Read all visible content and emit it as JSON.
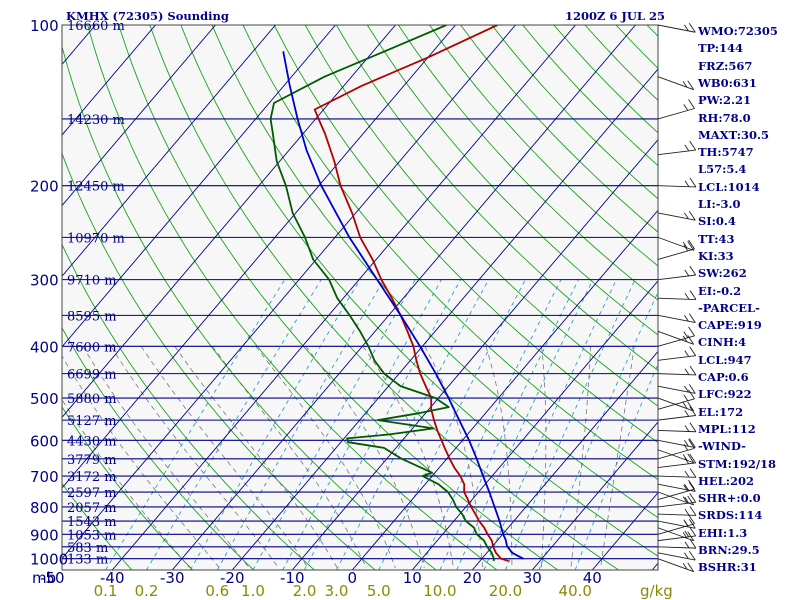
{
  "header": {
    "station": "KMHX (72305) Sounding",
    "time": "1200Z  6 JUL 25"
  },
  "colors": {
    "background": "#ffffff",
    "plot_background": "#f7f7f7",
    "isobars": "#00008b",
    "isotherms": "#00008b",
    "dry_adiabats": "#1aa31a",
    "moist_adiabats": "#777777",
    "mixing_ratio": "#2e9cc9",
    "temperature": "#b00000",
    "dewpoint": "#005a00",
    "parcel": "#0000cc",
    "mixing_ratio_labels": "#8a8a00",
    "text": "#00008b"
  },
  "indices": [
    "WMO:72305",
    "TP:144",
    "FRZ:567",
    "WB0:631",
    "PW:2.21",
    "RH:78.0",
    "MAXT:30.5",
    "TH:5747",
    "L57:5.4",
    "LCL:1014",
    "LI:-3.0",
    "SI:0.4",
    "TT:43",
    "KI:33",
    "SW:262",
    "EI:-0.2",
    "-PARCEL-",
    "CAPE:919",
    "CINH:4",
    "LCL:947",
    "CAP:0.6",
    "LFC:922",
    "EL:172",
    "MPL:112",
    "-WIND-",
    "STM:192/18",
    "HEL:202",
    "SHR+:0.0",
    "SRDS:114",
    "EHI:1.3",
    "BRN:29.5",
    "BSHR:31"
  ],
  "chart_data": {
    "type": "line",
    "title": "KMHX (72305) Sounding",
    "subtitle": "1200Z  6 JUL 25",
    "y_axis": "pressure (mb), logarithmic",
    "ylim": [
      1050,
      100
    ],
    "xlim": [
      -50,
      50
    ],
    "pressure_labels": [
      100,
      200,
      300,
      400,
      500,
      600,
      700,
      800,
      900,
      1000
    ],
    "height_labels": [
      {
        "p": 100,
        "label": "16660 m"
      },
      {
        "p": 150,
        "label": "14230 m"
      },
      {
        "p": 200,
        "label": "12450 m"
      },
      {
        "p": 250,
        "label": "10970 m"
      },
      {
        "p": 300,
        "label": "9710 m"
      },
      {
        "p": 350,
        "label": "8595 m"
      },
      {
        "p": 400,
        "label": "7600 m"
      },
      {
        "p": 450,
        "label": "6699 m"
      },
      {
        "p": 500,
        "label": "5880 m"
      },
      {
        "p": 550,
        "label": "5127 m"
      },
      {
        "p": 600,
        "label": "4430 m"
      },
      {
        "p": 650,
        "label": "3779 m"
      },
      {
        "p": 700,
        "label": "3172 m"
      },
      {
        "p": 750,
        "label": "2597 m"
      },
      {
        "p": 800,
        "label": "2057 m"
      },
      {
        "p": 850,
        "label": "1543 m"
      },
      {
        "p": 900,
        "label": "1053 m"
      },
      {
        "p": 950,
        "label": "583 m"
      },
      {
        "p": 1000,
        "label": "133 m"
      }
    ],
    "x_unit_label": "mb",
    "temperature_ticks": [
      "-50",
      "-40",
      "-30",
      "-20",
      "-10",
      "0",
      "10",
      "20",
      "30",
      "40"
    ],
    "temperature_tick_values": [
      -50,
      -40,
      -30,
      -20,
      -10,
      0,
      10,
      20,
      30,
      40
    ],
    "mixing_ratio_labels": [
      "0.1",
      "0.2",
      "0.6",
      "1.0",
      "2.0",
      "3.0",
      "5.0",
      "10.0",
      "20.0",
      "40.0"
    ],
    "mixing_ratio_positions": [
      0.1,
      0.2,
      0.6,
      1.0,
      2.0,
      3.0,
      5.0,
      10.0,
      20.0,
      40.0
    ],
    "mixing_ratio_unit": "g/kg",
    "series": [
      {
        "key": "temperature",
        "points": [
          [
            1010,
            24.8
          ],
          [
            1000,
            23.2
          ],
          [
            975,
            21.5
          ],
          [
            950,
            20.2
          ],
          [
            925,
            19.1
          ],
          [
            900,
            17.5
          ],
          [
            875,
            16.0
          ],
          [
            850,
            14.2
          ],
          [
            825,
            12.6
          ],
          [
            800,
            10.9
          ],
          [
            775,
            9.3
          ],
          [
            750,
            7.6
          ],
          [
            725,
            6.5
          ],
          [
            700,
            4.7
          ],
          [
            675,
            2.5
          ],
          [
            650,
            0.5
          ],
          [
            625,
            -1.5
          ],
          [
            600,
            -3.5
          ],
          [
            575,
            -5.6
          ],
          [
            550,
            -7.6
          ],
          [
            525,
            -9.6
          ],
          [
            500,
            -11.2
          ],
          [
            475,
            -13.8
          ],
          [
            450,
            -16.5
          ],
          [
            425,
            -19.0
          ],
          [
            400,
            -21.5
          ],
          [
            375,
            -24.6
          ],
          [
            350,
            -28.0
          ],
          [
            325,
            -31.9
          ],
          [
            300,
            -36.3
          ],
          [
            275,
            -40.6
          ],
          [
            250,
            -45.8
          ],
          [
            225,
            -50.6
          ],
          [
            200,
            -56.4
          ],
          [
            180,
            -60.9
          ],
          [
            160,
            -66.3
          ],
          [
            150,
            -69.5
          ],
          [
            144,
            -71.5
          ],
          [
            130,
            -67.0
          ],
          [
            115,
            -60.0
          ],
          [
            100,
            -53.0
          ]
        ]
      },
      {
        "key": "dewpoint",
        "points": [
          [
            1010,
            22.3
          ],
          [
            1000,
            22.0
          ],
          [
            975,
            20.8
          ],
          [
            950,
            19.2
          ],
          [
            925,
            17.8
          ],
          [
            900,
            15.7
          ],
          [
            875,
            14.3
          ],
          [
            850,
            12.0
          ],
          [
            825,
            10.4
          ],
          [
            800,
            8.4
          ],
          [
            775,
            6.8
          ],
          [
            750,
            4.9
          ],
          [
            725,
            2.2
          ],
          [
            700,
            -1.6
          ],
          [
            690,
            -0.5
          ],
          [
            650,
            -7.5
          ],
          [
            620,
            -12.0
          ],
          [
            605,
            -18.8
          ],
          [
            595,
            -19.5
          ],
          [
            585,
            -13.0
          ],
          [
            570,
            -6.5
          ],
          [
            550,
            -17.0
          ],
          [
            535,
            -11.5
          ],
          [
            520,
            -7.0
          ],
          [
            500,
            -10.5
          ],
          [
            475,
            -18.0
          ],
          [
            450,
            -22.5
          ],
          [
            425,
            -26.0
          ],
          [
            400,
            -29.0
          ],
          [
            375,
            -32.5
          ],
          [
            350,
            -36.5
          ],
          [
            325,
            -41.0
          ],
          [
            300,
            -45.0
          ],
          [
            275,
            -50.5
          ],
          [
            250,
            -55.0
          ],
          [
            225,
            -60.5
          ],
          [
            200,
            -65.5
          ],
          [
            180,
            -70.5
          ],
          [
            160,
            -75.0
          ],
          [
            150,
            -77.5
          ],
          [
            140,
            -79.2
          ],
          [
            125,
            -74.5
          ],
          [
            110,
            -67.0
          ],
          [
            100,
            -61.5
          ]
        ]
      },
      {
        "key": "parcel",
        "points": [
          [
            1000,
            26.9
          ],
          [
            975,
            24.2
          ],
          [
            947,
            22.4
          ],
          [
            922,
            21.3
          ],
          [
            900,
            20.1
          ],
          [
            850,
            17.6
          ],
          [
            800,
            14.8
          ],
          [
            750,
            11.8
          ],
          [
            700,
            8.5
          ],
          [
            650,
            5.0
          ],
          [
            600,
            1.1
          ],
          [
            550,
            -3.4
          ],
          [
            500,
            -8.3
          ],
          [
            450,
            -13.9
          ],
          [
            400,
            -20.4
          ],
          [
            350,
            -28.0
          ],
          [
            300,
            -37.0
          ],
          [
            250,
            -47.6
          ],
          [
            200,
            -59.6
          ],
          [
            172,
            -67.0
          ],
          [
            150,
            -73.0
          ],
          [
            130,
            -79.0
          ],
          [
            112,
            -85.0
          ]
        ]
      }
    ],
    "wind_barbs_present": true
  }
}
